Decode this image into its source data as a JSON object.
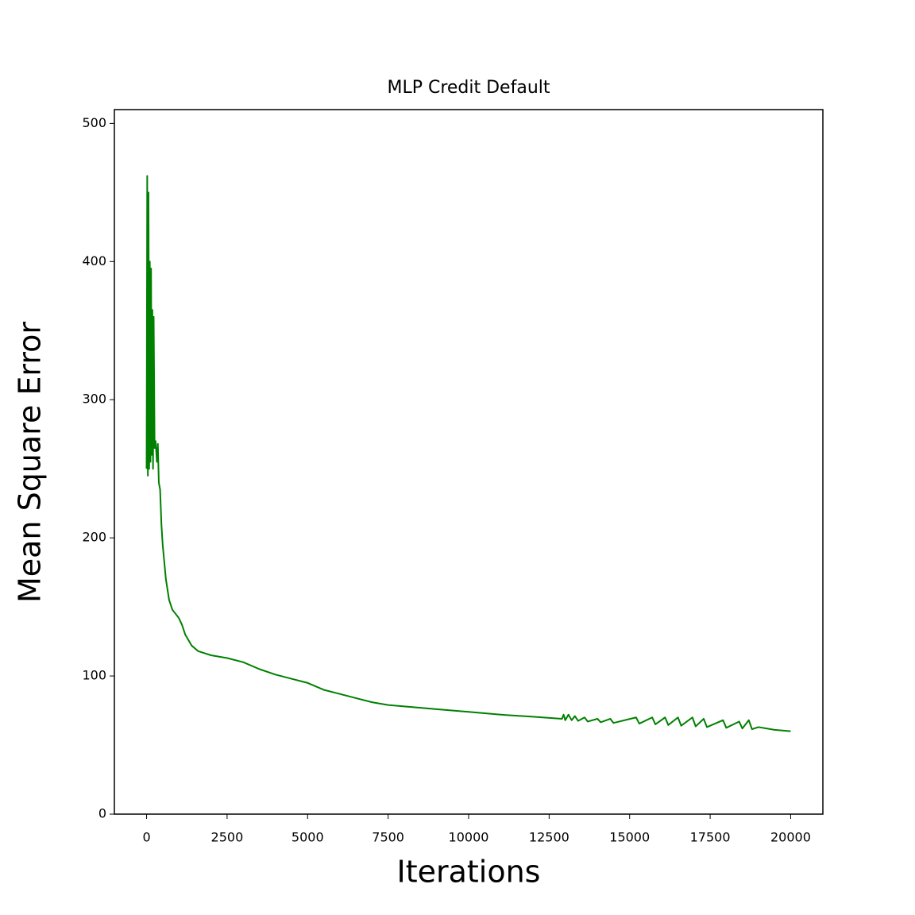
{
  "chart_data": {
    "type": "line",
    "title": "MLP Credit Default",
    "xlabel": "Iterations",
    "ylabel": "Mean Square Error",
    "color": "#008000",
    "grid": false,
    "xlim": [
      -1000,
      21000
    ],
    "ylim": [
      0,
      510
    ],
    "xticks": [
      0,
      2500,
      5000,
      7500,
      10000,
      12500,
      15000,
      17500,
      20000
    ],
    "yticks": [
      0,
      100,
      200,
      300,
      400,
      500
    ],
    "x": [
      0,
      20,
      40,
      60,
      80,
      100,
      120,
      140,
      160,
      180,
      200,
      220,
      250,
      280,
      320,
      350,
      380,
      420,
      460,
      500,
      600,
      700,
      800,
      900,
      1000,
      1100,
      1200,
      1400,
      1600,
      2000,
      2500,
      3000,
      3500,
      4000,
      4500,
      5000,
      5500,
      6000,
      6500,
      7000,
      7500,
      8000,
      9000,
      10000,
      11000,
      12000,
      12900,
      12950,
      13000,
      13100,
      13200,
      13300,
      13400,
      13600,
      13700,
      14000,
      14100,
      14400,
      14500,
      15200,
      15300,
      15700,
      15800,
      16100,
      16200,
      16500,
      16600,
      16950,
      17050,
      17300,
      17400,
      17900,
      18000,
      18400,
      18500,
      18700,
      18800,
      19000,
      19500,
      20000
    ],
    "values": [
      250,
      462,
      245,
      450,
      250,
      400,
      255,
      395,
      260,
      365,
      250,
      360,
      265,
      270,
      255,
      268,
      240,
      235,
      210,
      195,
      170,
      155,
      148,
      145,
      142,
      137,
      130,
      122,
      118,
      115,
      113,
      110,
      105,
      101,
      98,
      95,
      90,
      87,
      84,
      81,
      79,
      78,
      76,
      74,
      72,
      70.5,
      69,
      72,
      68,
      72,
      68,
      71,
      67.5,
      70,
      67,
      69,
      66.5,
      69,
      66,
      70,
      65.5,
      70,
      65,
      70,
      64.5,
      70,
      64,
      70,
      63.5,
      69,
      63,
      68,
      62.5,
      67,
      62,
      68,
      61.5,
      63,
      61,
      60
    ]
  }
}
